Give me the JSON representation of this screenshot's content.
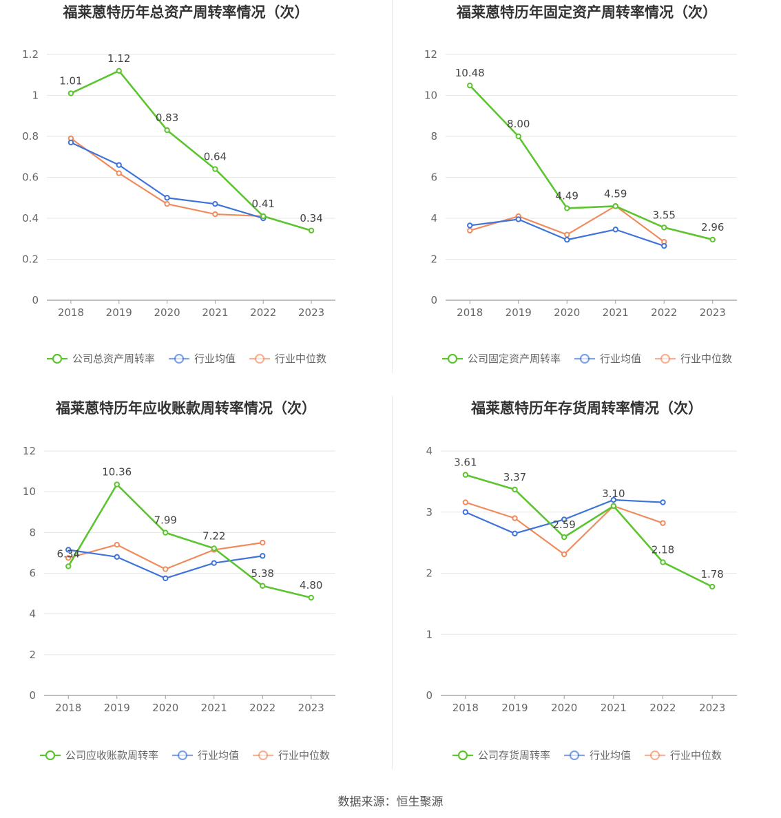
{
  "colors": {
    "company": "#5bc42f",
    "average": "#3e73d8",
    "median": "#f08b5e",
    "grid": "#e6e6e6",
    "axis": "#999999"
  },
  "footer": "数据来源：恒生聚源",
  "chart_data": [
    {
      "type": "line",
      "title": "福莱蒽特历年总资产周转率情况（次）",
      "categories": [
        "2018",
        "2019",
        "2020",
        "2021",
        "2022",
        "2023"
      ],
      "ylim": [
        0,
        1.2
      ],
      "yticks": [
        "0",
        "0.2",
        "0.4",
        "0.6",
        "0.8",
        "1",
        "1.2"
      ],
      "series": [
        {
          "name": "公司总资产周转率",
          "values": [
            1.01,
            1.12,
            0.83,
            0.64,
            0.41,
            0.34
          ],
          "labels": [
            "1.01",
            "1.12",
            "0.83",
            "0.64",
            "0.41",
            "0.34"
          ]
        },
        {
          "name": "行业均值",
          "values": [
            0.77,
            0.66,
            0.5,
            0.47,
            0.4,
            null
          ]
        },
        {
          "name": "行业中位数",
          "values": [
            0.79,
            0.62,
            0.47,
            0.42,
            0.41,
            null
          ]
        }
      ]
    },
    {
      "type": "line",
      "title": "福莱蒽特历年固定资产周转率情况（次）",
      "categories": [
        "2018",
        "2019",
        "2020",
        "2021",
        "2022",
        "2023"
      ],
      "ylim": [
        0,
        12
      ],
      "yticks": [
        "0",
        "2",
        "4",
        "6",
        "8",
        "10",
        "12"
      ],
      "series": [
        {
          "name": "公司固定资产周转率",
          "values": [
            10.48,
            8.0,
            4.49,
            4.59,
            3.55,
            2.96
          ],
          "labels": [
            "10.48",
            "8.00",
            "4.49",
            "4.59",
            "3.55",
            "2.96"
          ]
        },
        {
          "name": "行业均值",
          "values": [
            3.65,
            3.95,
            2.95,
            3.45,
            2.65,
            null
          ]
        },
        {
          "name": "行业中位数",
          "values": [
            3.4,
            4.1,
            3.2,
            4.6,
            2.85,
            null
          ]
        }
      ]
    },
    {
      "type": "line",
      "title": "福莱蒽特历年应收账款周转率情况（次）",
      "categories": [
        "2018",
        "2019",
        "2020",
        "2021",
        "2022",
        "2023"
      ],
      "ylim": [
        0,
        12
      ],
      "yticks": [
        "0",
        "2",
        "4",
        "6",
        "8",
        "10",
        "12"
      ],
      "series": [
        {
          "name": "公司应收账款周转率",
          "values": [
            6.34,
            10.36,
            7.99,
            7.22,
            5.38,
            4.8
          ],
          "labels": [
            "6.34",
            "10.36",
            "7.99",
            "7.22",
            "5.38",
            "4.80"
          ]
        },
        {
          "name": "行业均值",
          "values": [
            7.15,
            6.8,
            5.75,
            6.5,
            6.85,
            null
          ]
        },
        {
          "name": "行业中位数",
          "values": [
            6.75,
            7.4,
            6.2,
            7.15,
            7.5,
            null
          ]
        }
      ]
    },
    {
      "type": "line",
      "title": "福莱蒽特历年存货周转率情况（次）",
      "categories": [
        "2018",
        "2019",
        "2020",
        "2021",
        "2022",
        "2023"
      ],
      "ylim": [
        0,
        4
      ],
      "yticks": [
        "0",
        "1",
        "2",
        "3",
        "4"
      ],
      "series": [
        {
          "name": "公司存货周转率",
          "values": [
            3.61,
            3.37,
            2.59,
            3.1,
            2.18,
            1.78
          ],
          "labels": [
            "3.61",
            "3.37",
            "2.59",
            "3.10",
            "2.18",
            "1.78"
          ]
        },
        {
          "name": "行业均值",
          "values": [
            3.0,
            2.65,
            2.88,
            3.2,
            3.16,
            null
          ]
        },
        {
          "name": "行业中位数",
          "values": [
            3.16,
            2.9,
            2.31,
            3.1,
            2.82,
            null
          ]
        }
      ]
    }
  ]
}
